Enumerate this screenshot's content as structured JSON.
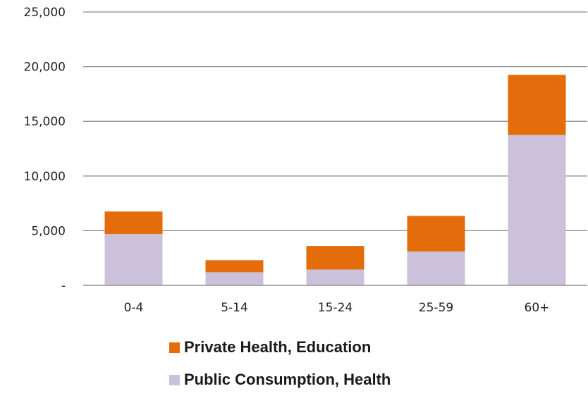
{
  "chart_data": {
    "type": "bar",
    "stacked": true,
    "categories": [
      "0-4",
      "5-14",
      "15-24",
      "25-59",
      "60+"
    ],
    "series": [
      {
        "name": "Public Consumption, Health",
        "color": "#CCC1DA",
        "values": [
          4700,
          1200,
          1450,
          3100,
          13750
        ]
      },
      {
        "name": "Private Health, Education",
        "color": "#E46C0A",
        "values": [
          2050,
          1100,
          2150,
          3250,
          5500
        ]
      }
    ],
    "ylim": [
      0,
      25000
    ],
    "y_ticks": [
      0,
      5000,
      10000,
      15000,
      20000,
      25000
    ],
    "y_tick_labels": [
      "-",
      "5,000",
      "10,000",
      "15,000",
      "20,000",
      "25,000"
    ],
    "grid": true,
    "legend": {
      "placement": "bottom",
      "entries": [
        {
          "label": "Private Health, Education",
          "color": "#E46C0A"
        },
        {
          "label": "Public Consumption, Health",
          "color": "#CCC1DA"
        }
      ]
    }
  }
}
